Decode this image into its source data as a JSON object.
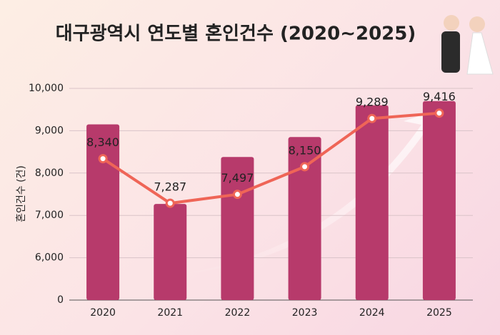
{
  "chart_data": {
    "type": "bar_line",
    "title": "대구광역시 연도별 혼인건수 (2020~2025)",
    "y_label": "혼인건수 (건)",
    "categories": [
      "2020",
      "2021",
      "2022",
      "2023",
      "2024",
      "2025"
    ],
    "series": [
      {
        "type": "bar",
        "color": "#b73a6b",
        "values": [
          9150,
          7270,
          8380,
          8850,
          9600,
          9700
        ]
      },
      {
        "type": "line",
        "color": "#ef6557",
        "values": [
          8340,
          7287,
          7497,
          8150,
          9289,
          9416
        ],
        "value_labels": [
          "8,340",
          "7,287",
          "7,497",
          "8,150",
          "9,289",
          "9,416"
        ]
      }
    ],
    "ylim": [
      0,
      10000
    ],
    "axis_break": [
      0,
      6000
    ],
    "yticks": [
      0,
      {
        "value": 6000,
        "label": "6,000"
      },
      {
        "value": 7000,
        "label": "7,000"
      },
      {
        "value": 8000,
        "label": "8,000"
      },
      {
        "value": 9000,
        "label": "9,000"
      },
      {
        "value": 10000,
        "label": "10,000"
      }
    ],
    "grid": true
  }
}
